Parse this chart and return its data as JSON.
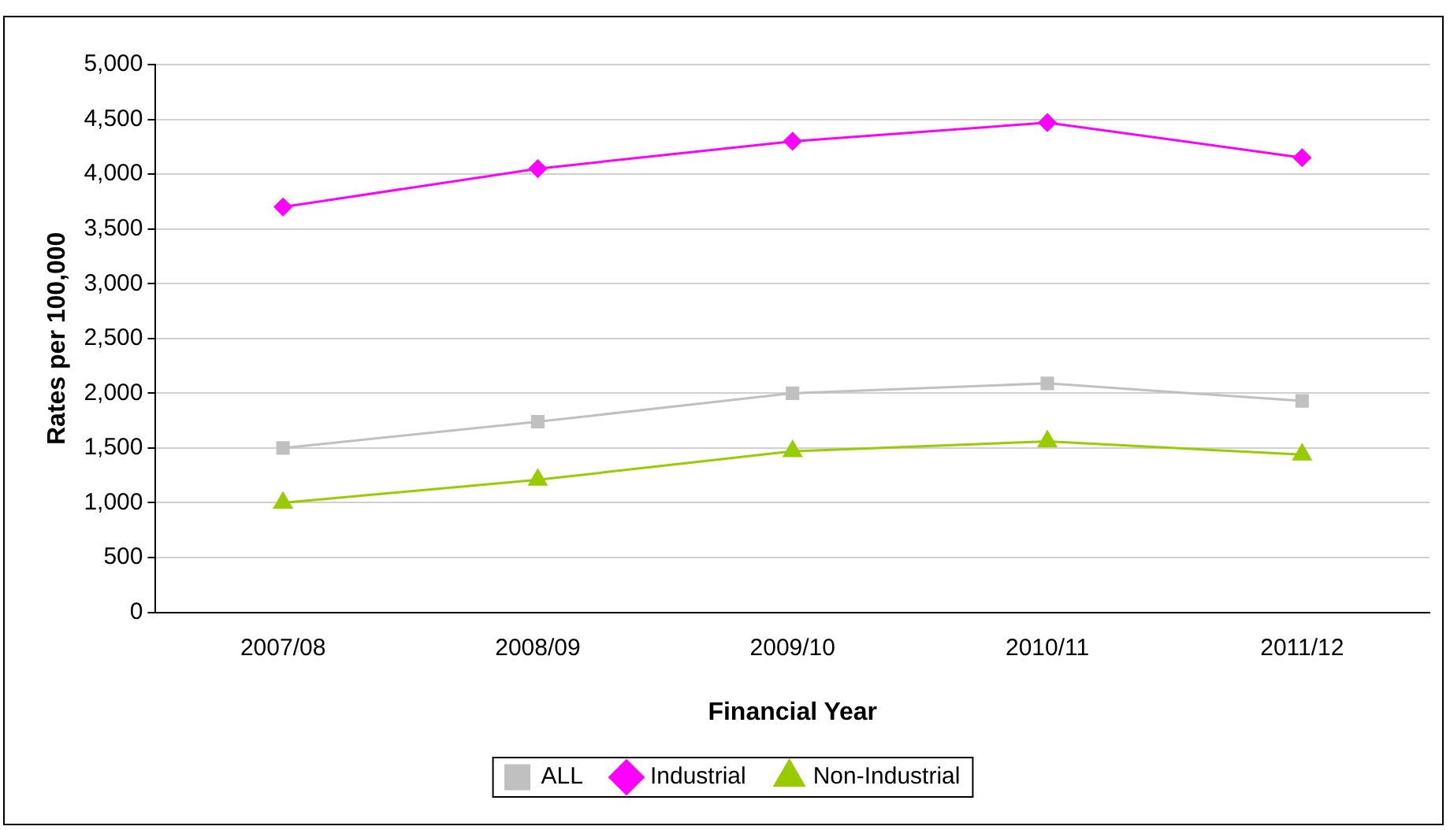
{
  "chart_data": {
    "type": "line",
    "xlabel": "Financial Year",
    "ylabel": "Rates per 100,000",
    "categories": [
      "2007/08",
      "2008/09",
      "2009/10",
      "2010/11",
      "2011/12"
    ],
    "series": [
      {
        "name": "ALL",
        "color": "#c0c0c0",
        "marker": "square",
        "values": [
          1500,
          1740,
          2000,
          2090,
          1930
        ]
      },
      {
        "name": "Industrial",
        "color": "#ff00ff",
        "marker": "diamond",
        "values": [
          3700,
          4050,
          4300,
          4470,
          4150
        ]
      },
      {
        "name": "Non-Industrial",
        "color": "#99cc00",
        "marker": "triangle",
        "values": [
          1000,
          1210,
          1470,
          1560,
          1440
        ]
      }
    ],
    "ylim": [
      0,
      5000
    ],
    "yticks": [
      0,
      500,
      {
        "value": 1000,
        "label": "1,000"
      },
      {
        "value": 1500,
        "label": "1,500"
      },
      {
        "value": 2000,
        "label": "2,000"
      },
      {
        "value": 2500,
        "label": "2,500"
      },
      {
        "value": 3000,
        "label": "3,000"
      },
      {
        "value": 3500,
        "label": "3,500"
      },
      {
        "value": 4000,
        "label": "4,000"
      },
      {
        "value": 4500,
        "label": "4,500"
      },
      {
        "value": 5000,
        "label": "5,000"
      }
    ],
    "grid": "y",
    "legend": "bottom"
  }
}
